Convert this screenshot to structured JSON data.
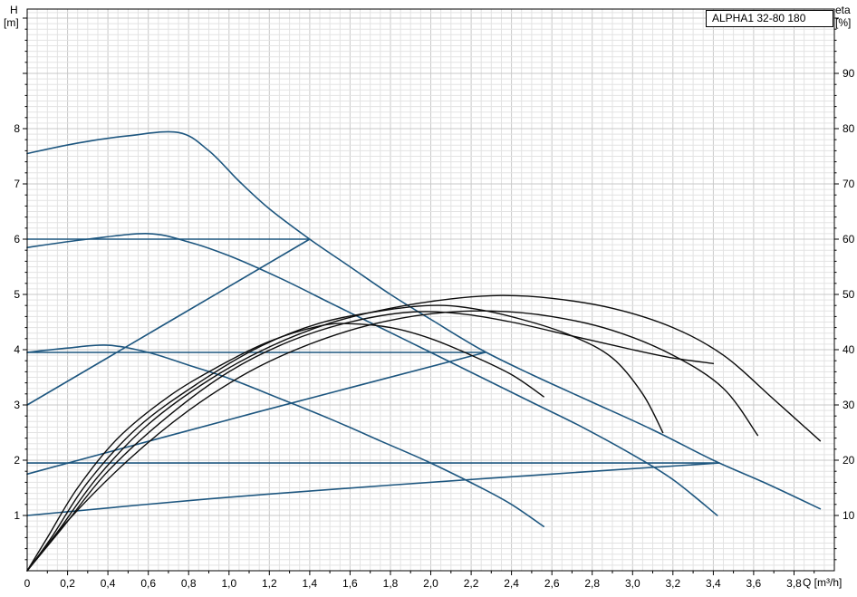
{
  "header": {
    "pump_model": "ALPHA1 32-80 180"
  },
  "chart_data": {
    "type": "line",
    "title": "ALPHA1 32-80 180",
    "xlabel": "Q [m³/h]",
    "ylabel_left": "H [m]",
    "ylabel_right": "eta [%]",
    "x_axis": {
      "label": "Q [m³/h]",
      "min": 0,
      "max": 4.0,
      "tick_values": [
        0,
        0.2,
        0.4,
        0.6,
        0.8,
        1.0,
        1.2,
        1.4,
        1.6,
        1.8,
        2.0,
        2.2,
        2.4,
        2.6,
        2.8,
        3.0,
        3.2,
        3.4,
        3.6,
        3.8
      ],
      "tick_labels": [
        "0",
        "0,2",
        "0,4",
        "0,6",
        "0,8",
        "1,0",
        "1,2",
        "1,4",
        "1,6",
        "1,8",
        "2,0",
        "2,2",
        "2,4",
        "2,6",
        "2,8",
        "3,0",
        "3,2",
        "3,4",
        "3,6",
        "3,8"
      ]
    },
    "left_axis": {
      "name": "H",
      "unit": "[m]",
      "min": 0,
      "max": 10.2,
      "tick_values": [
        1,
        2,
        3,
        4,
        5,
        6,
        7,
        8
      ],
      "tick_labels": [
        "1",
        "2",
        "3",
        "4",
        "5",
        "6",
        "7",
        "8"
      ]
    },
    "right_axis": {
      "name": "eta",
      "unit": "[%]",
      "min": 0,
      "max": 102,
      "tick_values": [
        10,
        20,
        30,
        40,
        50,
        60,
        70,
        80,
        90
      ],
      "tick_labels": [
        "10",
        "20",
        "30",
        "40",
        "50",
        "60",
        "70",
        "80",
        "90"
      ]
    },
    "grid": {
      "show": true,
      "minor_color": "#e3e3e3",
      "major_color": "#c9c9c9"
    },
    "colors": {
      "pump_curves": "#1d567f",
      "eta_curves": "#0d0d0d",
      "frame": "#000000"
    },
    "legend_position": "none",
    "series": [
      {
        "name": "speed-iii-max-curve",
        "axis": "H",
        "role": "pump",
        "points": [
          [
            0,
            7.55
          ],
          [
            0.25,
            7.74
          ],
          [
            0.5,
            7.87
          ],
          [
            0.75,
            7.93
          ],
          [
            0.9,
            7.6
          ],
          [
            1.05,
            7.05
          ],
          [
            1.2,
            6.55
          ],
          [
            1.4,
            6.0
          ],
          [
            1.6,
            5.5
          ],
          [
            1.8,
            5.0
          ],
          [
            2.0,
            4.55
          ],
          [
            2.25,
            4.0
          ],
          [
            2.5,
            3.55
          ],
          [
            2.8,
            3.05
          ],
          [
            3.1,
            2.55
          ],
          [
            3.4,
            2.0
          ],
          [
            3.65,
            1.6
          ],
          [
            3.93,
            1.12
          ]
        ]
      },
      {
        "name": "speed-ii-curve",
        "axis": "H",
        "role": "pump",
        "points": [
          [
            0,
            5.85
          ],
          [
            0.3,
            6.0
          ],
          [
            0.6,
            6.1
          ],
          [
            0.8,
            5.95
          ],
          [
            1.0,
            5.7
          ],
          [
            1.25,
            5.3
          ],
          [
            1.5,
            4.85
          ],
          [
            1.75,
            4.4
          ],
          [
            2.0,
            3.95
          ],
          [
            2.25,
            3.5
          ],
          [
            2.5,
            3.05
          ],
          [
            2.75,
            2.6
          ],
          [
            3.0,
            2.1
          ],
          [
            3.2,
            1.65
          ],
          [
            3.42,
            1.0
          ]
        ]
      },
      {
        "name": "speed-i-curve",
        "axis": "H",
        "role": "pump",
        "points": [
          [
            0,
            3.95
          ],
          [
            0.2,
            4.03
          ],
          [
            0.4,
            4.08
          ],
          [
            0.6,
            3.95
          ],
          [
            0.8,
            3.72
          ],
          [
            1.0,
            3.48
          ],
          [
            1.25,
            3.12
          ],
          [
            1.5,
            2.75
          ],
          [
            1.75,
            2.35
          ],
          [
            2.0,
            1.95
          ],
          [
            2.25,
            1.5
          ],
          [
            2.4,
            1.2
          ],
          [
            2.56,
            0.8
          ]
        ]
      },
      {
        "name": "constant-pressure-6m",
        "axis": "H",
        "role": "pump",
        "points": [
          [
            0,
            6.0
          ],
          [
            1.4,
            6.0
          ]
        ]
      },
      {
        "name": "constant-pressure-4m",
        "axis": "H",
        "role": "pump",
        "points": [
          [
            0,
            3.95
          ],
          [
            2.27,
            3.95
          ]
        ]
      },
      {
        "name": "constant-pressure-2m",
        "axis": "H",
        "role": "pump",
        "points": [
          [
            0,
            1.95
          ],
          [
            3.43,
            1.95
          ]
        ]
      },
      {
        "name": "proportional-pressure-6m",
        "axis": "H",
        "role": "pump",
        "points": [
          [
            0,
            3.0
          ],
          [
            0.7,
            4.5
          ],
          [
            1.4,
            6.0
          ]
        ]
      },
      {
        "name": "proportional-pressure-4m",
        "axis": "H",
        "role": "pump",
        "points": [
          [
            0,
            1.75
          ],
          [
            1.15,
            2.88
          ],
          [
            2.27,
            3.95
          ]
        ]
      },
      {
        "name": "proportional-pressure-2m",
        "axis": "H",
        "role": "pump",
        "points": [
          [
            0,
            1.0
          ],
          [
            0.9,
            1.3
          ],
          [
            1.8,
            1.55
          ],
          [
            2.6,
            1.75
          ],
          [
            3.43,
            1.95
          ]
        ]
      },
      {
        "name": "eta-curve-1",
        "axis": "eta",
        "role": "eta",
        "points": [
          [
            0,
            0
          ],
          [
            0.1,
            6
          ],
          [
            0.25,
            15
          ],
          [
            0.45,
            24
          ],
          [
            0.7,
            31.5
          ],
          [
            0.95,
            37
          ],
          [
            1.2,
            41.5
          ],
          [
            1.45,
            44.3
          ],
          [
            1.6,
            44.7
          ],
          [
            1.8,
            44
          ],
          [
            2.0,
            42
          ],
          [
            2.2,
            39
          ],
          [
            2.4,
            35.5
          ],
          [
            2.56,
            31.5
          ]
        ]
      },
      {
        "name": "eta-curve-2",
        "axis": "eta",
        "role": "eta",
        "points": [
          [
            0,
            0
          ],
          [
            0.12,
            6
          ],
          [
            0.3,
            16
          ],
          [
            0.55,
            26
          ],
          [
            0.85,
            34
          ],
          [
            1.15,
            40.5
          ],
          [
            1.45,
            44.8
          ],
          [
            1.75,
            47
          ],
          [
            2.0,
            48
          ],
          [
            2.2,
            47.5
          ],
          [
            2.45,
            45.5
          ],
          [
            2.7,
            42.5
          ],
          [
            2.9,
            38.5
          ],
          [
            3.05,
            32
          ],
          [
            3.15,
            25
          ]
        ]
      },
      {
        "name": "eta-curve-3",
        "axis": "eta",
        "role": "eta",
        "points": [
          [
            0,
            0
          ],
          [
            0.15,
            7
          ],
          [
            0.35,
            17
          ],
          [
            0.6,
            26.5
          ],
          [
            0.9,
            34.5
          ],
          [
            1.2,
            40.5
          ],
          [
            1.5,
            44.8
          ],
          [
            1.8,
            47.5
          ],
          [
            2.1,
            49.2
          ],
          [
            2.35,
            49.8
          ],
          [
            2.6,
            49.3
          ],
          [
            2.9,
            47.5
          ],
          [
            3.2,
            44
          ],
          [
            3.45,
            39
          ],
          [
            3.7,
            31
          ],
          [
            3.93,
            23.5
          ]
        ]
      },
      {
        "name": "eta-curve-4",
        "axis": "eta",
        "role": "eta",
        "points": [
          [
            0,
            0
          ],
          [
            0.18,
            8
          ],
          [
            0.4,
            18
          ],
          [
            0.7,
            28
          ],
          [
            1.0,
            36
          ],
          [
            1.3,
            41.5
          ],
          [
            1.6,
            45
          ],
          [
            1.9,
            46.8
          ],
          [
            2.15,
            46.5
          ],
          [
            2.4,
            45
          ],
          [
            2.7,
            42.5
          ],
          [
            3.0,
            40
          ],
          [
            3.2,
            38.5
          ],
          [
            3.4,
            37.5
          ]
        ]
      },
      {
        "name": "eta-curve-5",
        "axis": "eta",
        "role": "eta",
        "points": [
          [
            0,
            0
          ],
          [
            0.2,
            9
          ],
          [
            0.5,
            20
          ],
          [
            0.8,
            29
          ],
          [
            1.1,
            36
          ],
          [
            1.4,
            41
          ],
          [
            1.7,
            44.5
          ],
          [
            2.0,
            46.5
          ],
          [
            2.3,
            47
          ],
          [
            2.6,
            46
          ],
          [
            2.9,
            43.5
          ],
          [
            3.2,
            39
          ],
          [
            3.45,
            33
          ],
          [
            3.62,
            24.5
          ]
        ]
      }
    ]
  }
}
